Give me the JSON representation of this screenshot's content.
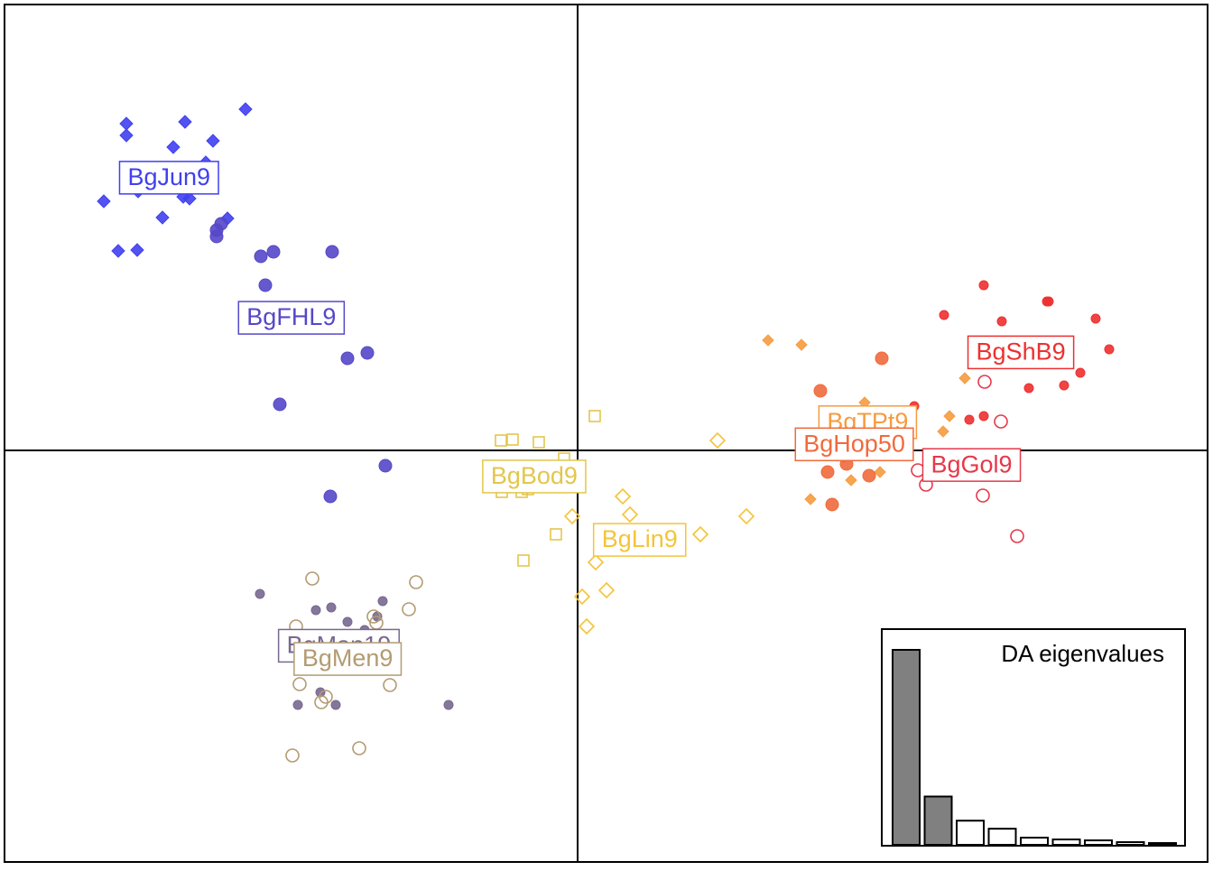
{
  "chart_data": [
    {
      "type": "scatter",
      "xlim": [
        -6.35,
        6.98
      ],
      "ylim": [
        -4.56,
        4.94
      ],
      "series": [
        {
          "name": "BgJun9",
          "color": "#4040f0",
          "marker": "diamond",
          "filled": true,
          "size": 7,
          "x": [
            -5.0,
            -5.0,
            -4.35,
            -3.68,
            -4.48,
            -4.04,
            -5.25,
            -4.6,
            -5.09,
            -4.88,
            -4.37,
            -4.3,
            -3.88,
            -4.12,
            -4.87
          ],
          "y": [
            3.62,
            3.49,
            3.64,
            3.78,
            3.36,
            3.43,
            2.76,
            2.58,
            2.21,
            2.22,
            2.81,
            2.79,
            2.57,
            3.19,
            2.87
          ]
        },
        {
          "name": "BgFHL9",
          "color": "#5547c8",
          "marker": "circle",
          "filled": true,
          "size": 7,
          "x": [
            -4.0,
            -3.95,
            -4.0,
            -3.51,
            -3.37,
            -2.72,
            -3.46,
            -2.55,
            -2.33,
            -3.3,
            -2.13,
            -2.74
          ],
          "y": [
            2.37,
            2.51,
            2.44,
            2.15,
            2.2,
            2.2,
            1.83,
            1.02,
            1.08,
            0.51,
            -0.17,
            -0.51
          ]
        },
        {
          "name": "BgMan19",
          "color": "#786890",
          "marker": "circle",
          "filled": true,
          "size": 5,
          "x": [
            -3.52,
            -2.9,
            -2.73,
            -2.16,
            -2.55,
            -2.36,
            -2.22,
            -2.9,
            -2.74,
            -2.9,
            -2.85,
            -2.68,
            -1.43,
            -3.1
          ],
          "y": [
            -1.59,
            -1.77,
            -1.74,
            -1.67,
            -1.9,
            -1.99,
            -1.84,
            -2.06,
            -2.21,
            -2.39,
            -2.68,
            -2.82,
            -2.82,
            -2.82
          ]
        },
        {
          "name": "BgMen9",
          "color": "#b39b72",
          "marker": "circle",
          "filled": false,
          "size": 7,
          "x": [
            -2.94,
            -1.79,
            -1.87,
            -2.26,
            -2.23,
            -3.12,
            -3.08,
            -2.08,
            -2.84,
            -2.79,
            -2.42,
            -3.16
          ],
          "y": [
            -1.42,
            -1.46,
            -1.76,
            -1.84,
            -1.91,
            -1.95,
            -2.59,
            -2.6,
            -2.79,
            -2.73,
            -3.3,
            -3.38
          ]
        },
        {
          "name": "BgBod9",
          "color": "#e3c64c",
          "marker": "square",
          "filled": false,
          "size": 6,
          "x": [
            -0.85,
            -0.72,
            -0.43,
            0.19,
            -0.15,
            -0.84,
            -0.55,
            -0.62,
            -0.24,
            -0.6
          ],
          "y": [
            0.11,
            0.12,
            0.09,
            0.38,
            -0.09,
            -0.46,
            -0.43,
            -0.46,
            -0.93,
            -1.22
          ]
        },
        {
          "name": "BgLin9",
          "color": "#f4c43a",
          "marker": "diamond",
          "filled": false,
          "size": 8,
          "x": [
            1.55,
            0.5,
            -0.06,
            1.87,
            1.36,
            1.09,
            0.2,
            0.05,
            0.32,
            0.1,
            0.58
          ],
          "y": [
            0.11,
            -0.51,
            -0.73,
            -0.73,
            -0.93,
            -1.04,
            -1.24,
            -1.62,
            -1.55,
            -1.95,
            -0.71
          ]
        },
        {
          "name": "BgTPt9",
          "color": "#f59c40",
          "marker": "diamond",
          "filled": true,
          "size": 6,
          "x": [
            2.11,
            2.48,
            3.18,
            4.12,
            4.29,
            4.05,
            3.35,
            3.03,
            2.58,
            2.95
          ],
          "y": [
            1.22,
            1.17,
            0.53,
            0.38,
            0.8,
            0.21,
            -0.24,
            -0.33,
            -0.54,
            -0.08
          ]
        },
        {
          "name": "BgHop50",
          "color": "#f06a3c",
          "marker": "circle",
          "filled": true,
          "size": 7,
          "x": [
            3.37,
            2.69,
            2.77,
            3.23,
            2.82,
            2.98,
            3.6
          ],
          "y": [
            1.02,
            0.66,
            -0.24,
            -0.28,
            -0.6,
            -0.15,
            0.06
          ]
        },
        {
          "name": "BgShB9",
          "color": "#ee3030",
          "marker": "circle",
          "filled": true,
          "size": 5,
          "x": [
            4.5,
            5.2,
            5.22,
            4.06,
            4.7,
            5.74,
            5.89,
            5.0,
            5.39,
            5.57,
            3.73,
            4.5,
            4.34
          ],
          "y": [
            1.83,
            1.65,
            1.65,
            1.5,
            1.43,
            1.46,
            1.12,
            0.69,
            0.72,
            0.86,
            0.49,
            0.38,
            0.34
          ]
        },
        {
          "name": "BgGol9",
          "color": "#e6384a",
          "marker": "circle",
          "filled": false,
          "size": 7,
          "x": [
            4.51,
            4.69,
            3.77,
            3.86,
            4.49,
            4.87
          ],
          "y": [
            0.76,
            0.32,
            -0.22,
            -0.38,
            -0.5,
            -0.95
          ]
        }
      ]
    },
    {
      "type": "bar",
      "title": "DA eigenvalues",
      "ylim": [
        0,
        220
      ],
      "values": [
        218,
        54,
        27,
        18,
        8,
        6,
        5,
        3,
        2
      ],
      "colors": [
        "#808080",
        "#808080",
        "#ffffff",
        "#ffffff",
        "#ffffff",
        "#ffffff",
        "#ffffff",
        "#ffffff",
        "#ffffff"
      ]
    }
  ]
}
